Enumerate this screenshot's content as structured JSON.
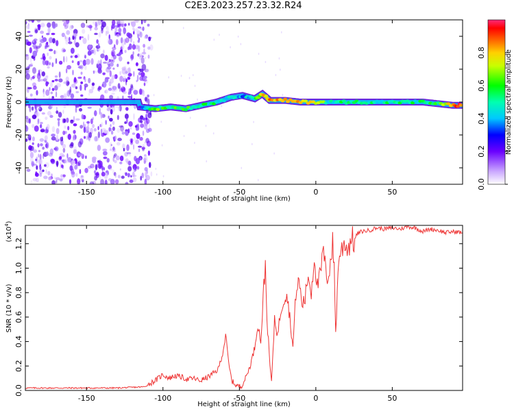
{
  "title": "C2E3.2023.257.23.32.R24",
  "chart_data": [
    {
      "type": "heatmap",
      "name": "spectrogram",
      "xlabel": "Height of straight line (km)",
      "ylabel": "Frequency (Hz)",
      "xlim": [
        -190,
        96
      ],
      "ylim": [
        -50,
        50
      ],
      "x_ticks": [
        "-150",
        "-100",
        "-50",
        "0",
        "50"
      ],
      "x_tick_values": [
        -150,
        -100,
        -50,
        0,
        50
      ],
      "y_ticks": [
        "-40",
        "-20",
        "0",
        "20",
        "40"
      ],
      "y_tick_values": [
        -40,
        -20,
        0,
        20,
        40
      ],
      "colorbar": {
        "label": "Normalized spectral amplitude",
        "range": [
          0,
          1
        ],
        "ticks": [
          "0.0",
          "0.2",
          "0.4",
          "0.6",
          "0.8"
        ],
        "tick_values": [
          0.0,
          0.2,
          0.4,
          0.6,
          0.8
        ]
      },
      "noise_region_x": [
        -190,
        -112
      ],
      "trace": {
        "x": [
          -115,
          -105,
          -95,
          -85,
          -75,
          -65,
          -55,
          -48,
          -40,
          -35,
          -30,
          -20,
          -10,
          0,
          10,
          20,
          30,
          40,
          50,
          60,
          70,
          80,
          90,
          96
        ],
        "frequency": [
          -3,
          -4,
          -3,
          -4,
          -2,
          0,
          3,
          4,
          2,
          5,
          1,
          1,
          0,
          0,
          0,
          0,
          0,
          0,
          0,
          0,
          0,
          -1,
          -2,
          -2
        ],
        "amplitude": [
          0.3,
          0.6,
          0.55,
          0.6,
          0.5,
          0.5,
          0.45,
          0.4,
          0.5,
          0.75,
          0.8,
          0.85,
          0.8,
          0.75,
          0.45,
          0.55,
          0.55,
          0.5,
          0.5,
          0.5,
          0.5,
          0.55,
          0.85,
          0.9
        ]
      }
    },
    {
      "type": "line",
      "name": "snr",
      "xlabel": "Height of straight line (km)",
      "ylabel": "SNR (10 * v/v)",
      "y_multiplier": "(x10",
      "y_multiplier_exp": "4",
      "y_multiplier_close": ")",
      "xlim": [
        -190,
        96
      ],
      "ylim": [
        0,
        1.35
      ],
      "x_ticks": [
        "-150",
        "-100",
        "-50",
        "0",
        "50"
      ],
      "x_tick_values": [
        -150,
        -100,
        -50,
        0,
        50
      ],
      "y_ticks": [
        "0.0",
        "0.2",
        "0.4",
        "0.6",
        "0.8",
        "1.0",
        "1.2"
      ],
      "y_tick_values": [
        0.0,
        0.2,
        0.4,
        0.6,
        0.8,
        1.0,
        1.2
      ],
      "color": "#ee3333",
      "x": [
        -190,
        -170,
        -150,
        -130,
        -112,
        -108,
        -104,
        -100,
        -96,
        -92,
        -88,
        -84,
        -80,
        -76,
        -72,
        -68,
        -64,
        -61,
        -59,
        -57,
        -55,
        -52,
        -49,
        -46,
        -43,
        -40,
        -38,
        -36,
        -34,
        -33,
        -32,
        -31,
        -30,
        -29,
        -28,
        -27,
        -25,
        -23,
        -21,
        -19,
        -17,
        -15,
        -13,
        -11,
        -9,
        -7,
        -5,
        -3,
        -1,
        1,
        3,
        5,
        7,
        9,
        11,
        12,
        13,
        15,
        17,
        19,
        21,
        23,
        25,
        27,
        30,
        35,
        40,
        45,
        50,
        55,
        60,
        65,
        70,
        75,
        80,
        85,
        90,
        96
      ],
      "values": [
        0.02,
        0.02,
        0.02,
        0.02,
        0.03,
        0.06,
        0.09,
        0.13,
        0.1,
        0.12,
        0.11,
        0.09,
        0.1,
        0.08,
        0.1,
        0.13,
        0.17,
        0.3,
        0.45,
        0.22,
        0.08,
        0.04,
        0.03,
        0.1,
        0.2,
        0.35,
        0.55,
        0.4,
        0.85,
        1.03,
        0.6,
        0.4,
        0.2,
        0.08,
        0.3,
        0.6,
        0.45,
        0.65,
        0.75,
        0.8,
        0.6,
        0.35,
        0.8,
        0.9,
        0.7,
        0.75,
        0.95,
        0.8,
        1.1,
        0.85,
        0.95,
        1.15,
        0.9,
        1.0,
        1.2,
        1.0,
        0.48,
        1.1,
        1.15,
        1.22,
        1.15,
        1.25,
        1.22,
        1.28,
        1.3,
        1.31,
        1.33,
        1.32,
        1.33,
        1.32,
        1.34,
        1.33,
        1.3,
        1.32,
        1.31,
        1.29,
        1.3,
        1.29
      ]
    }
  ]
}
